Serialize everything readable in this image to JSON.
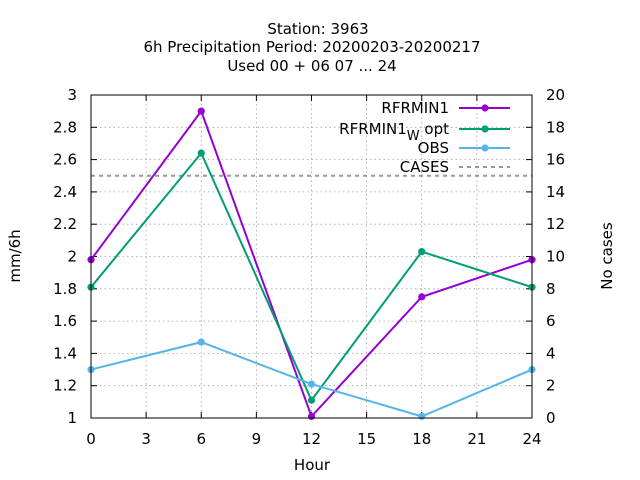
{
  "chart_data": {
    "type": "line",
    "title_lines": [
      "Station:      3963",
      "6h Precipitation   Period: 20200203-20200217",
      "Used  00 + 06 07 ... 24"
    ],
    "xlabel": "Hour",
    "ylabel": "mm/6h",
    "y2label": "No cases",
    "xlim": [
      0,
      24
    ],
    "ylim": [
      1,
      3
    ],
    "y2lim": [
      0,
      20
    ],
    "xticks": [
      "0",
      "3",
      "6",
      "9",
      "12",
      "15",
      "18",
      "21",
      "24"
    ],
    "yticks": [
      "1",
      "1.2",
      "1.4",
      "1.6",
      "1.8",
      "2",
      "2.2",
      "2.4",
      "2.6",
      "2.8",
      "3"
    ],
    "y2ticks": [
      "0",
      "2",
      "4",
      "6",
      "8",
      "10",
      "12",
      "14",
      "16",
      "18",
      "20"
    ],
    "grid": true,
    "legend_position": "top-right",
    "x": [
      0,
      6,
      12,
      18,
      24
    ],
    "series": [
      {
        "name": "RFRMIN1",
        "name_sub": "",
        "name_after": "",
        "color": "#9400d3",
        "values": [
          1.98,
          2.9,
          1.01,
          1.75,
          1.98
        ]
      },
      {
        "name": "RFRMIN1",
        "name_sub": "W",
        "name_after": " opt",
        "color": "#009e73",
        "values": [
          1.81,
          2.64,
          1.11,
          2.03,
          1.81
        ]
      },
      {
        "name": "OBS",
        "name_sub": "",
        "name_after": "",
        "color": "#56b4e9",
        "values": [
          1.3,
          1.47,
          1.21,
          1.01,
          1.3
        ]
      }
    ],
    "cases": {
      "name": "CASES",
      "color": "#999999",
      "value": 15
    }
  }
}
